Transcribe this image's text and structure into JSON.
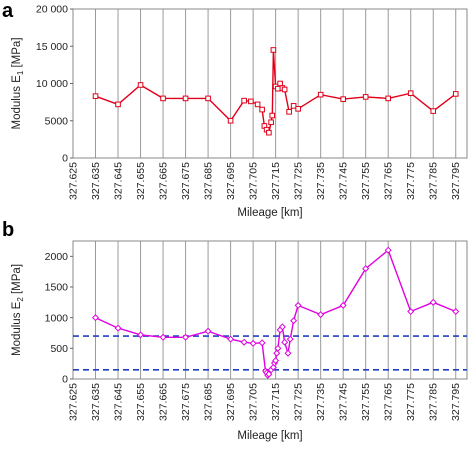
{
  "chart_data": [
    {
      "panel_label": "a",
      "type": "line",
      "xlabel": "Mileage [km]",
      "ylabel": "Modulus E",
      "ylabel_sub": "1",
      "ylabel_unit": " [MPa]",
      "ylim": [
        0,
        20000
      ],
      "yticks": [
        0,
        5000,
        10000,
        15000,
        20000
      ],
      "ytick_labels": [
        "0",
        "5000",
        "10 000",
        "15 000",
        "20 000"
      ],
      "xlim": [
        327.625,
        327.8
      ],
      "xticks": [
        "327.625",
        "327.635",
        "327.645",
        "327.655",
        "327.665",
        "327.675",
        "327.685",
        "327.695",
        "327.705",
        "327.715",
        "327.725",
        "327.735",
        "327.745",
        "327.755",
        "327.765",
        "327.775",
        "327.785",
        "327.795"
      ],
      "grid": "vertical",
      "color": "#e0001a",
      "marker": "square",
      "series": [
        {
          "x": [
            327.635,
            327.645,
            327.655,
            327.665,
            327.675,
            327.685,
            327.695,
            327.701,
            327.704,
            327.707,
            327.709,
            327.71,
            327.711,
            327.712,
            327.713,
            327.7135,
            327.714,
            327.715,
            327.716,
            327.717,
            327.718,
            327.719,
            327.721,
            327.723,
            327.725,
            327.735,
            327.745,
            327.755,
            327.765,
            327.775,
            327.785,
            327.795
          ],
          "y": [
            8300,
            7200,
            9800,
            8000,
            8000,
            8000,
            5000,
            7700,
            7600,
            7200,
            6500,
            4300,
            3800,
            3400,
            4800,
            5700,
            14500,
            9600,
            9300,
            10000,
            9400,
            9200,
            6200,
            7000,
            6600,
            8500,
            7900,
            8200,
            8000,
            8700,
            6300,
            8600
          ]
        }
      ]
    },
    {
      "panel_label": "b",
      "type": "line",
      "xlabel": "Mileage [km]",
      "ylabel": "Modulus E",
      "ylabel_sub": "2",
      "ylabel_unit": " [MPa]",
      "ylim": [
        0,
        2250
      ],
      "yticks": [
        0,
        500,
        1000,
        1500,
        2000
      ],
      "ytick_labels": [
        "0",
        "500",
        "1000",
        "1500",
        "2000"
      ],
      "xlim": [
        327.625,
        327.8
      ],
      "xticks": [
        "327.625",
        "327.635",
        "327.645",
        "327.655",
        "327.665",
        "327.675",
        "327.685",
        "327.695",
        "327.705",
        "327.715",
        "327.725",
        "327.735",
        "327.745",
        "327.755",
        "327.765",
        "327.775",
        "327.785",
        "327.795"
      ],
      "grid": "vertical",
      "color": "#e000e0",
      "marker": "diamond",
      "reference_lines": [
        {
          "y": 700,
          "color": "#2040c0",
          "style": "dashed"
        },
        {
          "y": 150,
          "color": "#2040c0",
          "style": "dashed"
        }
      ],
      "series": [
        {
          "x": [
            327.635,
            327.645,
            327.655,
            327.665,
            327.675,
            327.685,
            327.695,
            327.701,
            327.705,
            327.709,
            327.7105,
            327.711,
            327.7115,
            327.712,
            327.713,
            327.714,
            327.7145,
            327.715,
            327.7155,
            327.716,
            327.717,
            327.718,
            327.719,
            327.7205,
            327.7215,
            327.723,
            327.725,
            327.735,
            327.745,
            327.755,
            327.765,
            327.775,
            327.785,
            327.795
          ],
          "y": [
            1000,
            830,
            720,
            680,
            680,
            780,
            650,
            600,
            580,
            590,
            130,
            100,
            60,
            80,
            150,
            190,
            260,
            300,
            420,
            500,
            800,
            850,
            600,
            420,
            650,
            950,
            1200,
            1050,
            1200,
            1800,
            2100,
            1100,
            1250,
            1100
          ]
        }
      ]
    }
  ]
}
